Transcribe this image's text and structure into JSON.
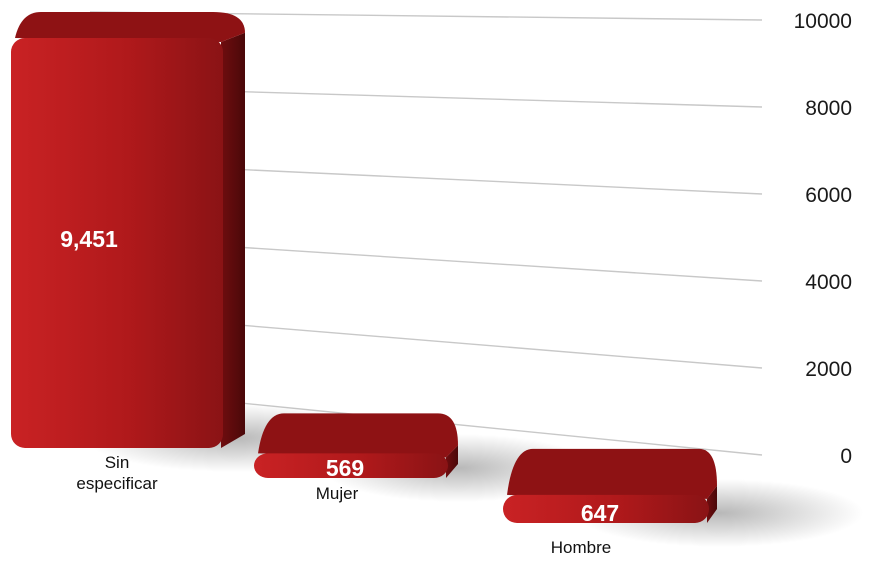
{
  "chart_data": {
    "type": "bar",
    "categories": [
      "Sin\nespecificar",
      "Mujer",
      "Hombre"
    ],
    "values": [
      9451,
      569,
      647
    ],
    "value_labels": [
      "9,451",
      "569",
      "647"
    ],
    "yticks": [
      "10000",
      "8000",
      "6000",
      "4000",
      "2000",
      "0"
    ],
    "ylim": [
      0,
      10000
    ],
    "title": "",
    "xlabel": "",
    "ylabel": "",
    "grid": true,
    "legend": "none",
    "axis_side": "right",
    "colors": {
      "bar": "#b0191b",
      "bar_top": "#8e1214",
      "bar_side": "#5e0b0c",
      "grid": "#c8c8c8"
    }
  }
}
